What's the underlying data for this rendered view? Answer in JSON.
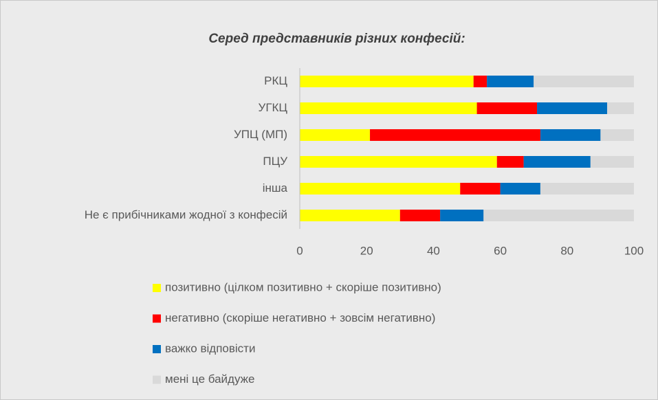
{
  "chart_data": {
    "type": "stacked-bar-horizontal",
    "title": "Серед представників різних конфесій:",
    "categories": [
      "РКЦ",
      "УГКЦ",
      "УПЦ (МП)",
      "ПЦУ",
      "інша",
      "Не є прибічниками жодної з конфесій"
    ],
    "series": [
      {
        "name": "позитивно (цілком позитивно + скоріше позитивно)",
        "color": "#ffff00",
        "values": [
          52,
          53,
          21,
          59,
          48,
          30
        ]
      },
      {
        "name": "негативно (скоріше негативно + зовсім негативно)",
        "color": "#ff0000",
        "values": [
          4,
          18,
          51,
          8,
          12,
          12
        ]
      },
      {
        "name": "важко відповісти",
        "color": "#0070c0",
        "values": [
          14,
          21,
          18,
          20,
          12,
          13
        ]
      },
      {
        "name": "мені це байдуже",
        "color": "#d9d9d9",
        "values": [
          30,
          8,
          10,
          13,
          28,
          45
        ]
      }
    ],
    "xlim": [
      0,
      100
    ],
    "xticks": [
      0,
      20,
      40,
      60,
      80,
      100
    ],
    "legend": "bottom"
  }
}
